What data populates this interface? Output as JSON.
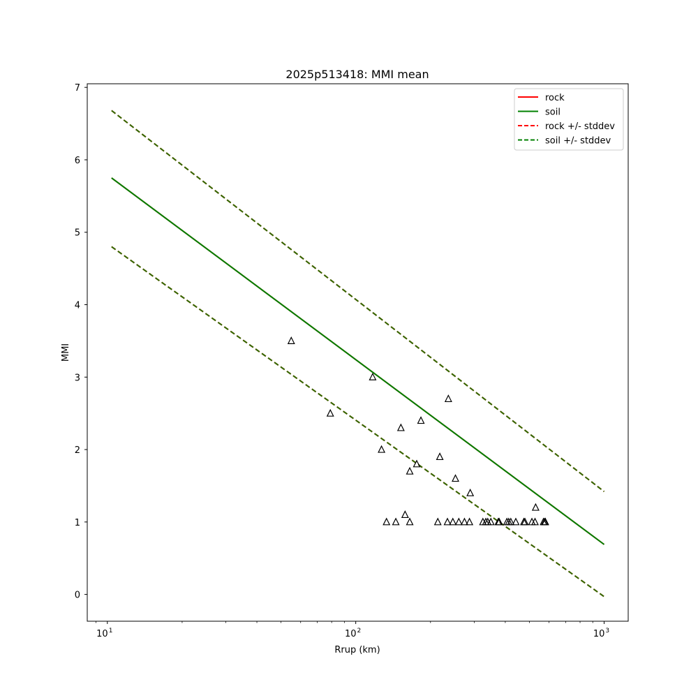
{
  "chart_data": {
    "type": "scatter",
    "title": "2025p513418: MMI mean",
    "xlabel": "Rrup (km)",
    "ylabel": "MMI",
    "xscale": "log",
    "xlim": [
      8.3,
      1250
    ],
    "ylim": [
      -0.37,
      7.05
    ],
    "x_ticks": [
      {
        "value": 10,
        "base": "10",
        "exp": "1"
      },
      {
        "value": 100,
        "base": "10",
        "exp": "2"
      },
      {
        "value": 1000,
        "base": "10",
        "exp": "3"
      }
    ],
    "y_ticks": [
      0,
      1,
      2,
      3,
      4,
      5,
      6,
      7
    ],
    "grid": false,
    "legend": {
      "position": "top-right",
      "entries": [
        {
          "label": "rock",
          "color": "#ff0000",
          "style": "solid"
        },
        {
          "label": "soil",
          "color": "#008000",
          "style": "solid"
        },
        {
          "label": "rock +/- stddev",
          "color": "#ff0000",
          "style": "dashed"
        },
        {
          "label": "soil +/- stddev",
          "color": "#008000",
          "style": "dashed"
        }
      ]
    },
    "series": [
      {
        "name": "rock",
        "kind": "line",
        "color": "#ff0000",
        "style": "solid",
        "x": [
          10.4,
          1000
        ],
        "y": [
          5.75,
          0.69
        ]
      },
      {
        "name": "soil",
        "kind": "line",
        "color": "#008000",
        "style": "solid",
        "x": [
          10.4,
          1000
        ],
        "y": [
          5.75,
          0.69
        ]
      },
      {
        "name": "rock +/- stddev",
        "kind": "line",
        "color": "#ff0000",
        "style": "dashed",
        "x": [
          10.4,
          1000
        ],
        "y": [
          6.68,
          1.42
        ]
      },
      {
        "name": "rock +/- stddev",
        "kind": "line",
        "color": "#ff0000",
        "style": "dashed",
        "x": [
          10.4,
          1000
        ],
        "y": [
          4.8,
          -0.03
        ]
      },
      {
        "name": "soil +/- stddev",
        "kind": "line",
        "color": "#2e6b00",
        "style": "dashed",
        "x": [
          10.4,
          1000
        ],
        "y": [
          6.68,
          1.42
        ]
      },
      {
        "name": "soil +/- stddev",
        "kind": "line",
        "color": "#2e6b00",
        "style": "dashed",
        "x": [
          10.4,
          1000
        ],
        "y": [
          4.8,
          -0.03
        ]
      },
      {
        "kind": "markers",
        "marker": "triangle",
        "color": "#000000",
        "points": [
          [
            55,
            3.5
          ],
          [
            79,
            2.5
          ],
          [
            117,
            3.0
          ],
          [
            127,
            2.0
          ],
          [
            152,
            2.3
          ],
          [
            183,
            2.4
          ],
          [
            236,
            2.7
          ],
          [
            176,
            1.8
          ],
          [
            165,
            1.7
          ],
          [
            218,
            1.9
          ],
          [
            252,
            1.6
          ],
          [
            289,
            1.4
          ],
          [
            158,
            1.1
          ],
          [
            530,
            1.2
          ],
          [
            133,
            1.0
          ],
          [
            145,
            1.0
          ],
          [
            165,
            1.0
          ],
          [
            214,
            1.0
          ],
          [
            234,
            1.0
          ],
          [
            246,
            1.0
          ],
          [
            260,
            1.0
          ],
          [
            274,
            1.0
          ],
          [
            287,
            1.0
          ],
          [
            325,
            1.0
          ],
          [
            334,
            1.0
          ],
          [
            340,
            1.0
          ],
          [
            350,
            1.0
          ],
          [
            375,
            1.0
          ],
          [
            378,
            1.0
          ],
          [
            406,
            1.0
          ],
          [
            413,
            1.0
          ],
          [
            421,
            1.0
          ],
          [
            441,
            1.0
          ],
          [
            475,
            1.0
          ],
          [
            480,
            1.0
          ],
          [
            512,
            1.0
          ],
          [
            527,
            1.0
          ],
          [
            570,
            1.0
          ],
          [
            576,
            1.0
          ],
          [
            580,
            1.0
          ]
        ]
      }
    ]
  }
}
